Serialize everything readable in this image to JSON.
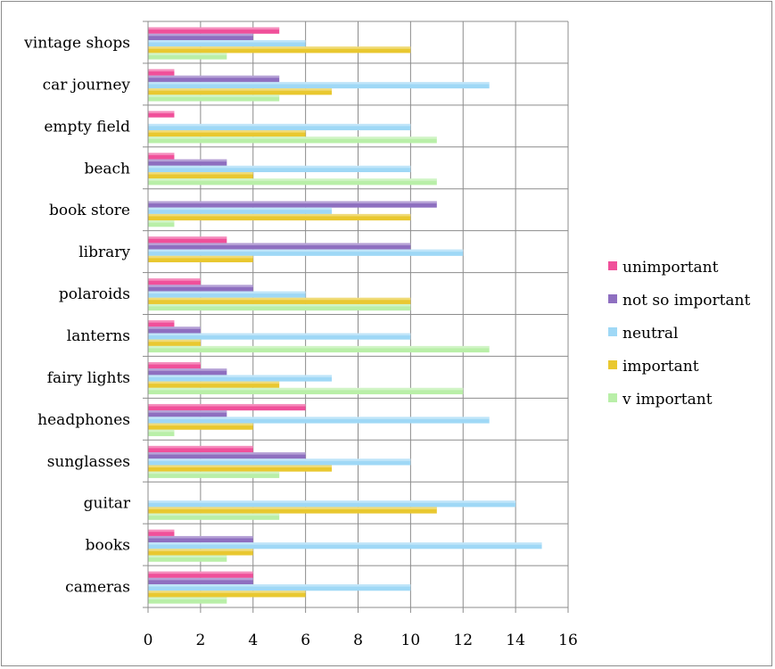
{
  "chart_data": {
    "type": "bar",
    "orientation": "horizontal",
    "categories": [
      "vintage shops",
      "car journey",
      "empty field",
      "beach",
      "book store",
      "library",
      "polaroids",
      "lanterns",
      "fairy lights",
      "headphones",
      "sunglasses",
      "guitar",
      "books",
      "cameras"
    ],
    "series": [
      {
        "name": "unimportant",
        "color": "#f0509a",
        "values": [
          5,
          1,
          1,
          1,
          0,
          3,
          2,
          1,
          2,
          6,
          4,
          0,
          1,
          4
        ]
      },
      {
        "name": "not so important",
        "color": "#8e6fc0",
        "values": [
          4,
          5,
          0,
          3,
          11,
          10,
          4,
          2,
          3,
          3,
          6,
          0,
          4,
          4
        ]
      },
      {
        "name": "neutral",
        "color": "#9fd8f6",
        "values": [
          6,
          13,
          10,
          10,
          7,
          12,
          6,
          10,
          7,
          13,
          10,
          14,
          15,
          10
        ]
      },
      {
        "name": "important",
        "color": "#e9c830",
        "values": [
          10,
          7,
          6,
          4,
          10,
          4,
          10,
          2,
          5,
          4,
          7,
          11,
          4,
          6
        ]
      },
      {
        "name": "v important",
        "color": "#b9efa8",
        "values": [
          3,
          5,
          11,
          11,
          1,
          0,
          10,
          13,
          12,
          1,
          5,
          5,
          3,
          3
        ]
      }
    ],
    "xlim": [
      0,
      16
    ],
    "xticks": [
      0,
      2,
      4,
      6,
      8,
      10,
      12,
      14,
      16
    ],
    "grid": true,
    "legend_position": "right"
  }
}
